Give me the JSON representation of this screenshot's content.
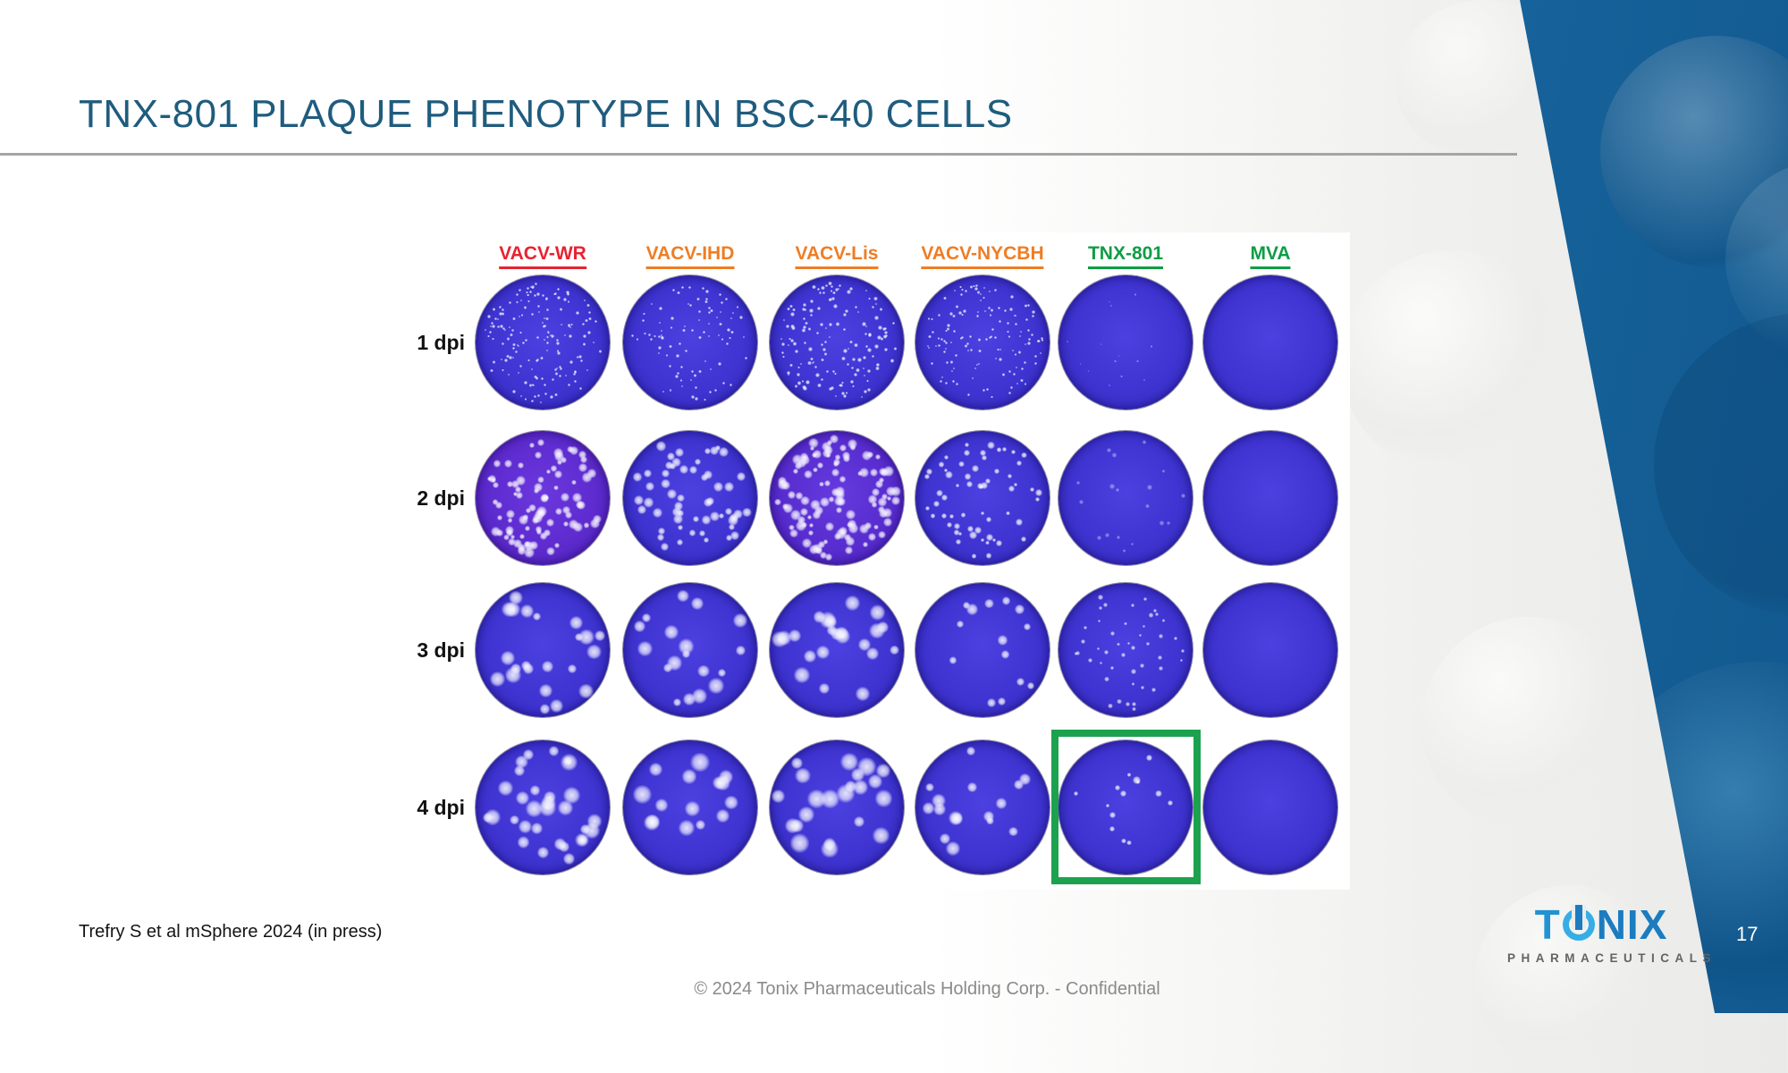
{
  "slide": {
    "title": "TNX-801 PLAQUE PHENOTYPE IN BSC-40 CELLS",
    "page_number": "17",
    "footnote": "Trefry S et al mSphere 2024 (in press)",
    "copyright": "© 2024 Tonix Pharmaceuticals Holding Corp. - Confidential"
  },
  "figure": {
    "description": "Plaque assay wells, 6 virus strains over 4 days post infection",
    "columns": [
      {
        "label": "VACV-WR",
        "color": "#e9222f"
      },
      {
        "label": "VACV-IHD",
        "color": "#ef7d24"
      },
      {
        "label": "VACV-Lis",
        "color": "#ef7d24"
      },
      {
        "label": "VACV-NYCBH",
        "color": "#ef7d24"
      },
      {
        "label": "TNX-801",
        "color": "#0f9d45"
      },
      {
        "label": "MVA",
        "color": "#0f9d45"
      }
    ],
    "rows": [
      {
        "label": "1 dpi"
      },
      {
        "label": "2 dpi"
      },
      {
        "label": "3 dpi"
      },
      {
        "label": "4 dpi"
      }
    ],
    "highlight": {
      "column": "TNX-801",
      "row": "4 dpi",
      "color": "#1ca24f"
    },
    "wells": [
      [
        {
          "n": 160,
          "d": [
            2,
            4
          ]
        },
        {
          "n": 90,
          "d": [
            2,
            4
          ]
        },
        {
          "n": 150,
          "d": [
            2,
            5
          ]
        },
        {
          "n": 130,
          "d": [
            2,
            4
          ]
        },
        {
          "n": 14,
          "d": [
            1,
            3
          ],
          "o": 0.5
        },
        {
          "n": 0,
          "d": [
            0,
            0
          ]
        }
      ],
      [
        {
          "n": 88,
          "d": [
            5,
            12
          ],
          "hue": 12
        },
        {
          "n": 55,
          "d": [
            6,
            12
          ]
        },
        {
          "n": 110,
          "d": [
            5,
            12
          ],
          "hue": 10
        },
        {
          "n": 60,
          "d": [
            4,
            9
          ]
        },
        {
          "n": 18,
          "d": [
            3,
            6
          ],
          "o": 0.45
        },
        {
          "n": 0,
          "d": [
            0,
            0
          ]
        }
      ],
      [
        {
          "n": 22,
          "d": [
            9,
            18
          ]
        },
        {
          "n": 18,
          "d": [
            9,
            18
          ]
        },
        {
          "n": 22,
          "d": [
            9,
            19
          ]
        },
        {
          "n": 14,
          "d": [
            7,
            13
          ]
        },
        {
          "n": 45,
          "d": [
            3,
            6
          ],
          "o": 0.8
        },
        {
          "n": 0,
          "d": [
            0,
            0
          ]
        }
      ],
      [
        {
          "n": 30,
          "d": [
            10,
            20
          ]
        },
        {
          "n": 15,
          "d": [
            11,
            22
          ]
        },
        {
          "n": 22,
          "d": [
            11,
            22
          ]
        },
        {
          "n": 16,
          "d": [
            8,
            16
          ]
        },
        {
          "n": 14,
          "d": [
            4,
            9
          ]
        },
        {
          "n": 0,
          "d": [
            0,
            0
          ]
        }
      ]
    ]
  },
  "logo": {
    "t": "T",
    "nix": "NIX",
    "sub": "PHARMACEUTICALS",
    "blue": "#1b7cc0",
    "light_blue": "#35aee5"
  },
  "colors": {
    "title": "#1f5c7e",
    "band": "#1d6ea9",
    "divider": "#a5a5a5"
  }
}
